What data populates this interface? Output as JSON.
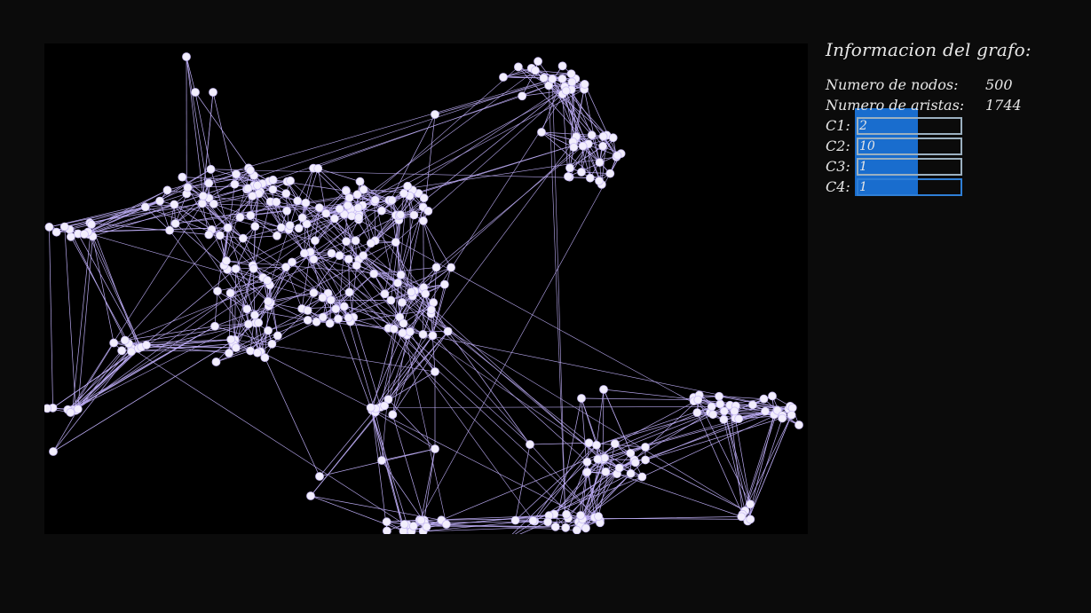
{
  "window": {
    "background_color": "#0b0b0b",
    "canvas_color": "#000000",
    "node_color": "#f2eefc",
    "edge_color": "#b9a9f0",
    "selection_color": "#1a73d9"
  },
  "info_panel": {
    "title": "Informacion del grafo:",
    "stats": [
      {
        "label": "Numero de nodos:",
        "value": "500"
      },
      {
        "label": "Numero de aristas:",
        "value": "1744"
      }
    ],
    "params": [
      {
        "label": "C1:",
        "value": "2"
      },
      {
        "label": "C2:",
        "value": "10"
      },
      {
        "label": "C3:",
        "value": "1"
      },
      {
        "label": "C4:",
        "value": "1"
      }
    ]
  }
}
